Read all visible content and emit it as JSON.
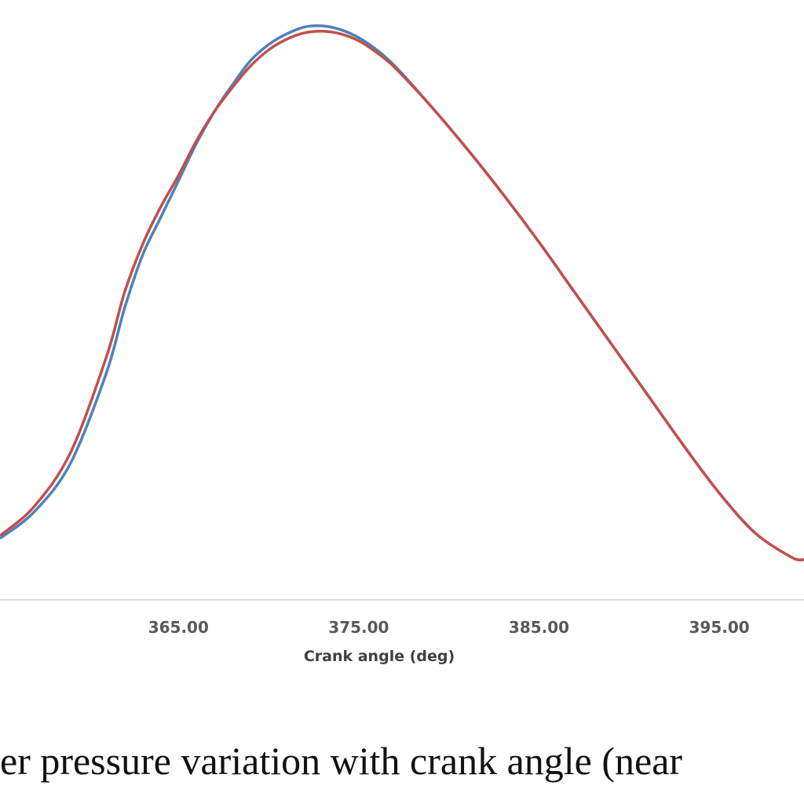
{
  "caption": "er pressure variation with crank angle (near",
  "chart_data": {
    "type": "line",
    "xlabel": "Crank angle (deg)",
    "x_ticks": [
      365,
      375,
      385,
      395
    ],
    "x_tick_labels": [
      "365.00",
      "375.00",
      "385.00",
      "395.00"
    ],
    "xlim": [
      355.1,
      399.7
    ],
    "grid": false,
    "legend": "none",
    "series": [
      {
        "color": "#4f81bd",
        "x": [
          355.1,
          357,
          359,
          361,
          362,
          363,
          364,
          365,
          366,
          367,
          368,
          369,
          370,
          371,
          372,
          373,
          374,
          375,
          376,
          377,
          379,
          381,
          383,
          385,
          387,
          389,
          391,
          393,
          395,
          397,
          399,
          399.7
        ],
        "y": [
          0.04,
          0.09,
          0.18,
          0.35,
          0.47,
          0.57,
          0.64,
          0.71,
          0.78,
          0.84,
          0.89,
          0.935,
          0.965,
          0.985,
          0.998,
          1.0,
          0.993,
          0.978,
          0.955,
          0.925,
          0.85,
          0.77,
          0.685,
          0.595,
          0.5,
          0.405,
          0.31,
          0.215,
          0.125,
          0.05,
          0.005,
          0.0
        ]
      },
      {
        "color": "#c0504d",
        "x": [
          355.1,
          357,
          359,
          361,
          362,
          363,
          364,
          365,
          366,
          367,
          368,
          369,
          370,
          371,
          372,
          373,
          374,
          375,
          376,
          377,
          379,
          381,
          383,
          385,
          387,
          389,
          391,
          393,
          395,
          397,
          399,
          399.7
        ],
        "y": [
          0.045,
          0.1,
          0.2,
          0.38,
          0.5,
          0.59,
          0.66,
          0.72,
          0.785,
          0.84,
          0.885,
          0.925,
          0.955,
          0.975,
          0.987,
          0.99,
          0.985,
          0.972,
          0.95,
          0.922,
          0.85,
          0.77,
          0.685,
          0.595,
          0.5,
          0.405,
          0.31,
          0.215,
          0.125,
          0.05,
          0.005,
          0.0
        ]
      }
    ]
  }
}
